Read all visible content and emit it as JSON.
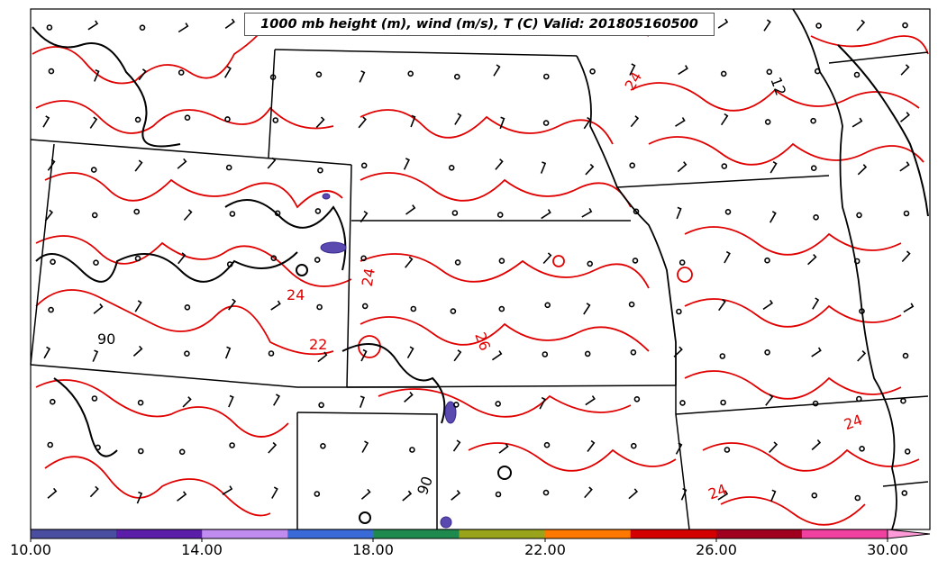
{
  "title": "1000 mb height (m), wind (m/s), T (C) Valid: 201805160500",
  "colorbar": {
    "tick_labels": [
      "10.00",
      "14.00",
      "18.00",
      "22.00",
      "26.00",
      "30.00"
    ],
    "colors": [
      "#4a4ea0",
      "#5a1ea8",
      "#c08cf0",
      "#3a6ad8",
      "#1e8a4e",
      "#9aa41a",
      "#ff7800",
      "#d40000",
      "#a0001e",
      "#f040a0"
    ],
    "extend_color": "#ff9ad8"
  },
  "contour_labels": [
    {
      "text": "24",
      "color": "#e00000"
    },
    {
      "text": "26",
      "color": "#e00000"
    },
    {
      "text": "22",
      "color": "#e00000"
    },
    {
      "text": "24",
      "color": "#e00000"
    },
    {
      "text": "24",
      "color": "#e00000"
    },
    {
      "text": "24",
      "color": "#e00000"
    },
    {
      "text": "24",
      "color": "#e00000"
    },
    {
      "text": "90",
      "color": "#000000"
    },
    {
      "text": "90",
      "color": "#000000"
    },
    {
      "text": "12",
      "color": "#000000"
    }
  ],
  "colors": {
    "temperature_contour": "#e00000",
    "height_contour": "#000000",
    "boundaries": "#000000",
    "shading": "#5a4ab0"
  }
}
